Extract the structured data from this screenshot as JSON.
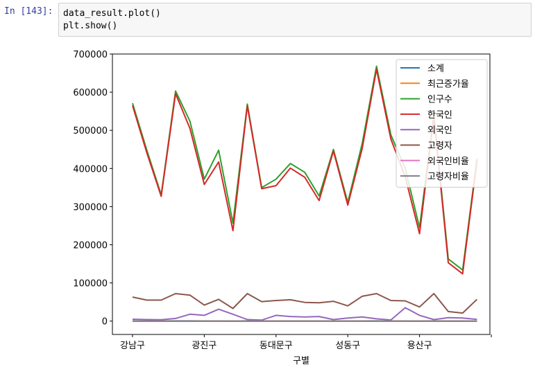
{
  "cell": {
    "prompt": "In [143]:",
    "code_lines": [
      "data_result.plot()",
      "plt.show()"
    ]
  },
  "chart_data": {
    "type": "line",
    "xlabel": "구별",
    "ylabel": "",
    "ylim": [
      -35000,
      700000
    ],
    "yticks": [
      0,
      100000,
      200000,
      300000,
      400000,
      500000,
      600000,
      700000
    ],
    "yticklabels": [
      "0",
      "100000",
      "200000",
      "300000",
      "400000",
      "500000",
      "600000",
      "700000"
    ],
    "xtick_positions": [
      0,
      5,
      10,
      15,
      20,
      25
    ],
    "xticklabels": [
      "강남구",
      "광진구",
      "동대문구",
      "성동구",
      "용산구",
      ""
    ],
    "legend_position": "upper right",
    "grid": false,
    "series": [
      {
        "name": "소계",
        "color": "#1f77b4",
        "values": [
          564,
          440,
          326,
          595,
          500,
          358,
          418,
          236,
          565,
          347,
          356,
          400,
          377,
          317,
          445,
          304,
          450,
          660,
          475,
          378,
          230,
          536,
          153,
          124,
          419
        ]
      },
      {
        "name": "최근증가율",
        "color": "#ff7f0e",
        "values": [
          0.5,
          0.4,
          0.6,
          0.3,
          0.5,
          0.4,
          0.5,
          0.6,
          0.4,
          0.5,
          0.3,
          0.4,
          0.5,
          0.6,
          0.4,
          0.5,
          0.3,
          0.4,
          0.5,
          0.4,
          0.6,
          0.5,
          0.4,
          0.3,
          0.5
        ]
      },
      {
        "name": "인구수",
        "color": "#2ca02c",
        "values": [
          571000,
          448000,
          331000,
          603000,
          524000,
          372000,
          448000,
          257000,
          569000,
          350000,
          372000,
          413000,
          390000,
          328000,
          450000,
          311000,
          465000,
          668000,
          488000,
          400000,
          245000,
          541000,
          163000,
          134000,
          426000
        ]
      },
      {
        "name": "한국인",
        "color": "#d62728",
        "values": [
          565000,
          441000,
          327000,
          596000,
          505000,
          358000,
          417000,
          237000,
          564000,
          347000,
          355000,
          401000,
          377000,
          316000,
          446000,
          304000,
          452000,
          660000,
          477000,
          378000,
          229000,
          536000,
          153000,
          124000,
          420000
        ]
      },
      {
        "name": "외국인",
        "color": "#9467bd",
        "values": [
          5000,
          4000,
          3500,
          7000,
          18000,
          15000,
          31000,
          18000,
          4000,
          2500,
          15000,
          12000,
          11000,
          12000,
          4000,
          8000,
          11000,
          6000,
          3000,
          35000,
          15000,
          4000,
          9000,
          8000,
          4500
        ]
      },
      {
        "name": "고령자",
        "color": "#8c564b",
        "values": [
          63000,
          55000,
          55000,
          72000,
          68000,
          42000,
          57000,
          33000,
          72000,
          51000,
          54000,
          56000,
          49000,
          48000,
          52000,
          40000,
          65000,
          72000,
          54000,
          53000,
          37000,
          72000,
          25000,
          21000,
          57000
        ]
      },
      {
        "name": "외국인비율",
        "color": "#e377c2",
        "values": [
          0.9,
          0.8,
          1.1,
          1.2,
          3.5,
          4.0,
          6.9,
          7.0,
          0.7,
          0.7,
          4.0,
          2.9,
          2.8,
          3.7,
          0.9,
          2.6,
          2.4,
          0.9,
          0.6,
          8.8,
          6.1,
          0.7,
          5.5,
          6.0,
          1.1
        ]
      },
      {
        "name": "고령자비율",
        "color": "#7f7f7f",
        "values": [
          11.0,
          12.3,
          16.6,
          11.9,
          13.0,
          11.3,
          12.7,
          12.8,
          12.7,
          14.6,
          14.5,
          13.6,
          12.6,
          14.6,
          11.6,
          12.9,
          14.0,
          10.8,
          11.1,
          13.3,
          15.1,
          13.3,
          15.3,
          15.7,
          13.4
        ]
      }
    ]
  }
}
